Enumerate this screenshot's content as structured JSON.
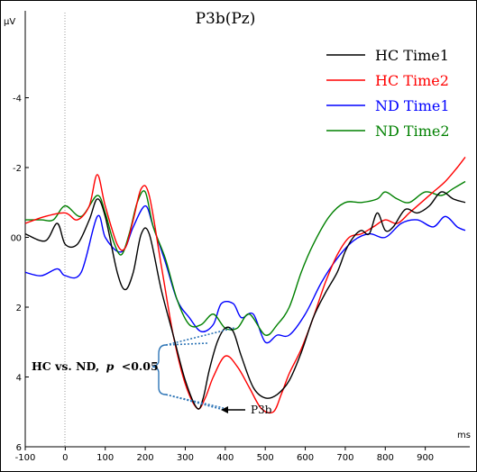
{
  "chart_data": {
    "type": "line",
    "title": "P3b(Pz)",
    "ylabel": "μV",
    "xlabel": "ms",
    "xlim": [
      -100,
      1000
    ],
    "ylim": [
      6,
      -6
    ],
    "y_inverted": true,
    "xticks": [
      "-100",
      "0",
      "100",
      "200",
      "300",
      "400",
      "500",
      "600",
      "700",
      "800",
      "900"
    ],
    "yticks": [
      "-4",
      "-2",
      "0",
      "2",
      "4",
      "6"
    ],
    "legend_position": "top-right",
    "colors": {
      "hc_time1": "#000000",
      "hc_time2": "#ff0000",
      "nd_time1": "#0000ff",
      "nd_time2": "#008000",
      "annotation": "#2e75b6"
    },
    "series": [
      {
        "name": "HC Time1",
        "color": "#000000",
        "x": [
          -100,
          -50,
          -20,
          0,
          30,
          60,
          80,
          100,
          130,
          150,
          170,
          190,
          210,
          240,
          270,
          300,
          330,
          345,
          360,
          380,
          400,
          420,
          440,
          470,
          500,
          530,
          560,
          590,
          620,
          650,
          680,
          700,
          720,
          740,
          760,
          780,
          800,
          820,
          850,
          880,
          910,
          940,
          970,
          1000
        ],
        "y": [
          -0.1,
          0.1,
          -0.4,
          0.2,
          0.2,
          -0.5,
          -1.1,
          -0.6,
          1.0,
          1.5,
          1.0,
          -0.1,
          -0.1,
          1.5,
          2.8,
          4.1,
          4.9,
          4.6,
          3.8,
          3.0,
          2.6,
          2.7,
          3.4,
          4.3,
          4.6,
          4.5,
          4.1,
          3.3,
          2.3,
          1.6,
          1.0,
          0.4,
          0.0,
          -0.2,
          -0.1,
          -0.7,
          -0.2,
          -0.3,
          -0.8,
          -0.7,
          -0.9,
          -1.3,
          -1.1,
          -1.0
        ]
      },
      {
        "name": "HC Time2",
        "color": "#ff0000",
        "x": [
          -100,
          -50,
          0,
          30,
          60,
          80,
          100,
          130,
          150,
          170,
          190,
          210,
          240,
          270,
          300,
          330,
          350,
          370,
          400,
          430,
          460,
          490,
          520,
          540,
          560,
          590,
          620,
          650,
          680,
          710,
          740,
          770,
          800,
          830,
          860,
          890,
          920,
          950,
          980,
          1000
        ],
        "y": [
          -0.4,
          -0.6,
          -0.7,
          -0.5,
          -0.9,
          -1.8,
          -0.9,
          0.2,
          0.3,
          -0.5,
          -1.4,
          -1.2,
          0.8,
          2.8,
          4.2,
          4.9,
          4.6,
          4.0,
          3.4,
          3.7,
          4.3,
          4.9,
          5.0,
          4.5,
          3.9,
          3.2,
          2.3,
          1.3,
          0.5,
          0.0,
          -0.1,
          -0.3,
          -0.5,
          -0.4,
          -0.7,
          -1.0,
          -1.3,
          -1.6,
          -2.0,
          -2.3
        ]
      },
      {
        "name": "ND Time1",
        "color": "#0000ff",
        "x": [
          -100,
          -60,
          -20,
          0,
          40,
          80,
          100,
          130,
          150,
          170,
          200,
          220,
          250,
          280,
          310,
          340,
          370,
          390,
          420,
          440,
          470,
          500,
          530,
          560,
          600,
          640,
          680,
          720,
          760,
          800,
          840,
          880,
          920,
          950,
          980,
          1000
        ],
        "y": [
          1.0,
          1.1,
          0.9,
          1.1,
          1.0,
          -0.6,
          0.0,
          0.4,
          0.3,
          -0.3,
          -0.9,
          -0.3,
          0.7,
          1.8,
          2.3,
          2.7,
          2.5,
          1.9,
          1.9,
          2.3,
          2.2,
          3.0,
          2.8,
          2.8,
          2.2,
          1.3,
          0.6,
          0.1,
          -0.1,
          0.0,
          -0.4,
          -0.5,
          -0.3,
          -0.6,
          -0.3,
          -0.2
        ]
      },
      {
        "name": "ND Time2",
        "color": "#008000",
        "x": [
          -100,
          -60,
          -30,
          0,
          40,
          80,
          100,
          120,
          140,
          160,
          180,
          200,
          220,
          250,
          280,
          310,
          340,
          370,
          400,
          430,
          460,
          500,
          530,
          560,
          590,
          620,
          660,
          700,
          740,
          780,
          800,
          830,
          860,
          900,
          940,
          970,
          1000
        ],
        "y": [
          -0.5,
          -0.5,
          -0.5,
          -0.9,
          -0.6,
          -1.2,
          -0.7,
          0.1,
          0.5,
          -0.1,
          -1.0,
          -1.3,
          -0.3,
          0.6,
          1.8,
          2.5,
          2.5,
          2.2,
          2.6,
          2.6,
          2.2,
          2.8,
          2.5,
          2.0,
          1.0,
          0.2,
          -0.6,
          -1.0,
          -1.0,
          -1.1,
          -1.3,
          -1.1,
          -1.0,
          -1.3,
          -1.2,
          -1.4,
          -1.6
        ]
      }
    ],
    "annotations": {
      "comparison_text": "HC vs. ND,",
      "p_label": "p",
      "p_threshold": "<0.05",
      "peak_label": "P3b"
    }
  }
}
